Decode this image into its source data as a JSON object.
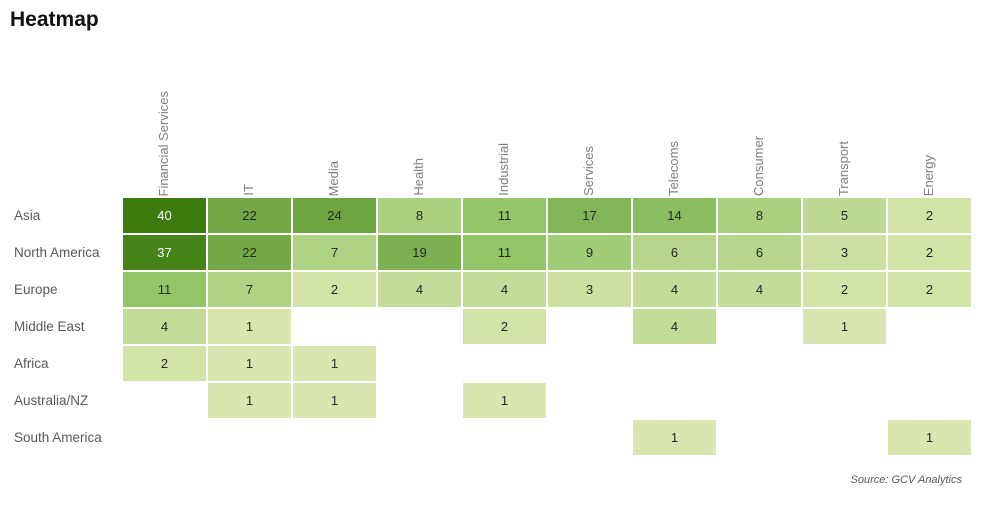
{
  "title": "Heatmap",
  "source_note": "Source: GCV Analytics",
  "chart_data": {
    "type": "heatmap",
    "columns": [
      "Financial Services",
      "IT",
      "Media",
      "Health",
      "Industrial",
      "Services",
      "Telecoms",
      "Consumer",
      "Transport",
      "Energy"
    ],
    "rows": [
      "Asia",
      "North America",
      "Europe",
      "Middle East",
      "Africa",
      "Australia/NZ",
      "South America"
    ],
    "values": [
      [
        40,
        22,
        24,
        8,
        11,
        17,
        14,
        8,
        5,
        2
      ],
      [
        37,
        22,
        7,
        19,
        11,
        9,
        6,
        6,
        3,
        2
      ],
      [
        11,
        7,
        2,
        4,
        4,
        3,
        4,
        4,
        2,
        2
      ],
      [
        4,
        1,
        null,
        null,
        2,
        null,
        4,
        null,
        1,
        null
      ],
      [
        2,
        1,
        1,
        null,
        null,
        null,
        null,
        null,
        null,
        null
      ],
      [
        null,
        1,
        1,
        null,
        1,
        null,
        null,
        null,
        null,
        null
      ],
      [
        null,
        null,
        null,
        null,
        null,
        null,
        1,
        null,
        null,
        1
      ]
    ],
    "value_range": [
      1,
      40
    ],
    "legend": "none",
    "grid": "off",
    "color_scale": {
      "stops": [
        {
          "value": 1,
          "color": "#d9e6af"
        },
        {
          "value": 11,
          "color": "#93c669"
        },
        {
          "value": 40,
          "color": "#3c7a0d"
        }
      ],
      "empty_color": "#ffffff",
      "text_color": "#262626",
      "text_color_high": "#ffffff",
      "high_value_threshold": 30
    }
  }
}
